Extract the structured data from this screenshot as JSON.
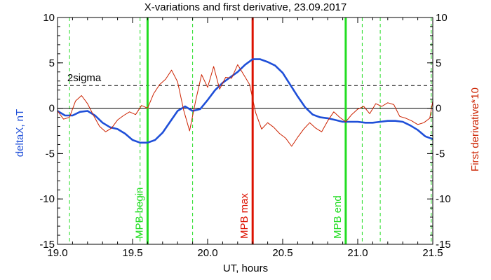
{
  "chart_data": {
    "type": "line",
    "title": "X-variations and first derivative, 23.09.2017",
    "xlabel": "UT, hours",
    "ylabel_left": "deltaX, nT",
    "ylabel_right": "First derivative*10",
    "xlim": [
      19.0,
      21.5
    ],
    "ylim": [
      -15,
      10
    ],
    "xticks": [
      "19.0",
      "19.5",
      "20.0",
      "20.5",
      "21.0",
      "21.5"
    ],
    "yticks_left": [
      "-15",
      "-10",
      "-5",
      "0",
      "5",
      "10"
    ],
    "yticks_right": [
      "-15",
      "-10",
      "-5",
      "0",
      "5",
      "10"
    ],
    "grid": false,
    "colors": {
      "deltaX": "#1f4fd8",
      "derivative": "#cc2200",
      "marker_green": "#22dd22",
      "marker_red": "#dd1100"
    },
    "zero_line": 0,
    "sigma_line": {
      "label": "2sigma",
      "y": 2.5
    },
    "dashed_verticals": [
      19.08,
      19.55,
      19.9,
      21.03,
      21.15,
      21.49
    ],
    "markers": [
      {
        "label": "MPB begin",
        "x": 19.6,
        "color": "#22dd22"
      },
      {
        "label": "MPB max",
        "x": 20.3,
        "color": "#dd1100"
      },
      {
        "label": "MPB end",
        "x": 20.92,
        "color": "#22dd22"
      }
    ],
    "series": [
      {
        "key": "deltaX",
        "x": [
          19.0,
          19.05,
          19.1,
          19.15,
          19.2,
          19.25,
          19.3,
          19.35,
          19.4,
          19.45,
          19.5,
          19.55,
          19.6,
          19.65,
          19.7,
          19.75,
          19.8,
          19.85,
          19.9,
          19.95,
          20.0,
          20.05,
          20.1,
          20.15,
          20.2,
          20.25,
          20.3,
          20.35,
          20.4,
          20.45,
          20.5,
          20.55,
          20.6,
          20.65,
          20.7,
          20.75,
          20.8,
          20.85,
          20.9,
          20.95,
          21.0,
          21.05,
          21.1,
          21.15,
          21.2,
          21.25,
          21.3,
          21.35,
          21.4,
          21.45,
          21.5
        ],
        "values": [
          -0.3,
          -0.8,
          -0.8,
          -0.4,
          -0.3,
          -0.8,
          -1.6,
          -2.1,
          -2.3,
          -2.8,
          -3.5,
          -3.8,
          -3.8,
          -3.5,
          -2.7,
          -1.5,
          -0.3,
          0.2,
          -0.3,
          -0.1,
          0.9,
          2.0,
          2.8,
          3.4,
          4.0,
          4.8,
          5.4,
          5.4,
          5.1,
          4.7,
          3.9,
          2.6,
          1.3,
          0.1,
          -0.7,
          -1.0,
          -1.1,
          -1.3,
          -1.5,
          -1.5,
          -1.5,
          -1.6,
          -1.6,
          -1.5,
          -1.4,
          -1.4,
          -1.5,
          -1.9,
          -2.4,
          -3.1,
          -3.4
        ]
      },
      {
        "key": "derivative",
        "x": [
          19.0,
          19.04,
          19.08,
          19.12,
          19.16,
          19.2,
          19.24,
          19.28,
          19.32,
          19.36,
          19.4,
          19.44,
          19.48,
          19.52,
          19.56,
          19.6,
          19.64,
          19.68,
          19.72,
          19.76,
          19.8,
          19.84,
          19.88,
          19.92,
          19.96,
          20.0,
          20.04,
          20.08,
          20.12,
          20.16,
          20.2,
          20.24,
          20.28,
          20.32,
          20.36,
          20.4,
          20.44,
          20.48,
          20.52,
          20.56,
          20.6,
          20.64,
          20.68,
          20.72,
          20.76,
          20.8,
          20.84,
          20.88,
          20.92,
          20.96,
          21.0,
          21.04,
          21.08,
          21.12,
          21.16,
          21.2,
          21.24,
          21.28,
          21.32,
          21.36,
          21.4,
          21.44,
          21.48,
          21.5
        ],
        "values": [
          -0.3,
          -1.2,
          -1.0,
          0.8,
          1.4,
          0.5,
          -0.8,
          -2.0,
          -2.6,
          -2.2,
          -1.3,
          -0.8,
          -0.4,
          -0.7,
          0.3,
          0.0,
          1.6,
          2.6,
          3.2,
          4.2,
          2.9,
          -0.2,
          -2.5,
          0.8,
          3.7,
          2.3,
          4.6,
          2.1,
          3.4,
          3.3,
          4.8,
          3.7,
          2.6,
          -0.5,
          -2.3,
          -1.6,
          -2.1,
          -2.8,
          -3.3,
          -4.2,
          -3.2,
          -2.3,
          -1.6,
          -2.2,
          -2.6,
          -1.4,
          -0.4,
          -1.0,
          -1.5,
          -0.7,
          -0.1,
          0.2,
          -0.6,
          0.5,
          0.2,
          0.6,
          0.4,
          -0.9,
          -1.1,
          -1.4,
          -1.8,
          -1.6,
          -1.1,
          0.8
        ]
      }
    ]
  }
}
